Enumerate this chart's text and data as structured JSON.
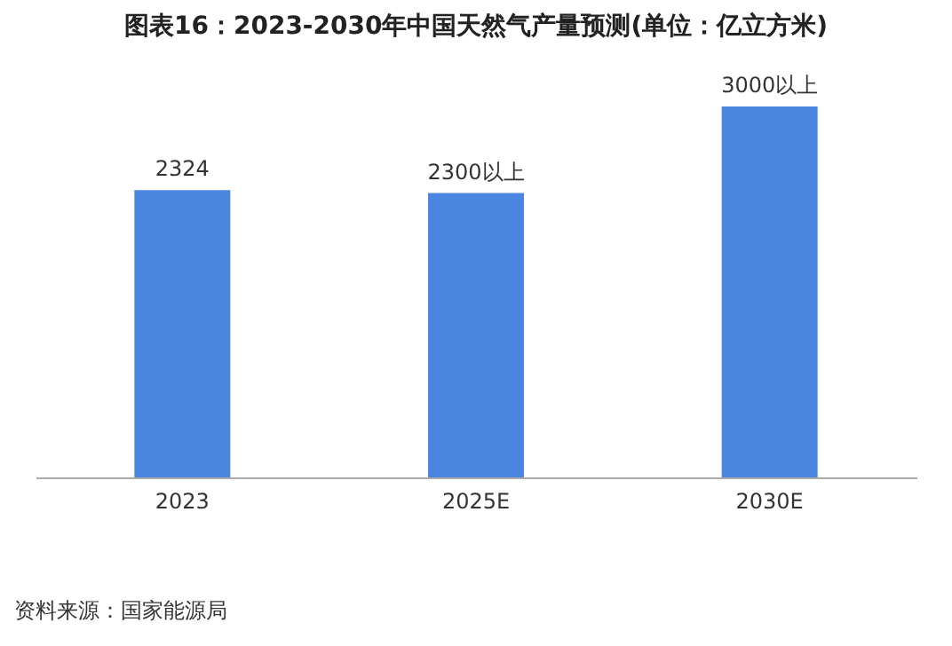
{
  "chart_data": {
    "type": "bar",
    "title": "图表16：2023-2030年中国天然气产量预测(单位：亿立方米)",
    "categories": [
      "2023",
      "2025E",
      "2030E"
    ],
    "values": [
      2324,
      2300,
      3000
    ],
    "value_labels": [
      "2324",
      "2300以上",
      "3000以上"
    ],
    "color": "#4a86e0",
    "annotations": [
      "资料来源：国家能源局"
    ]
  }
}
